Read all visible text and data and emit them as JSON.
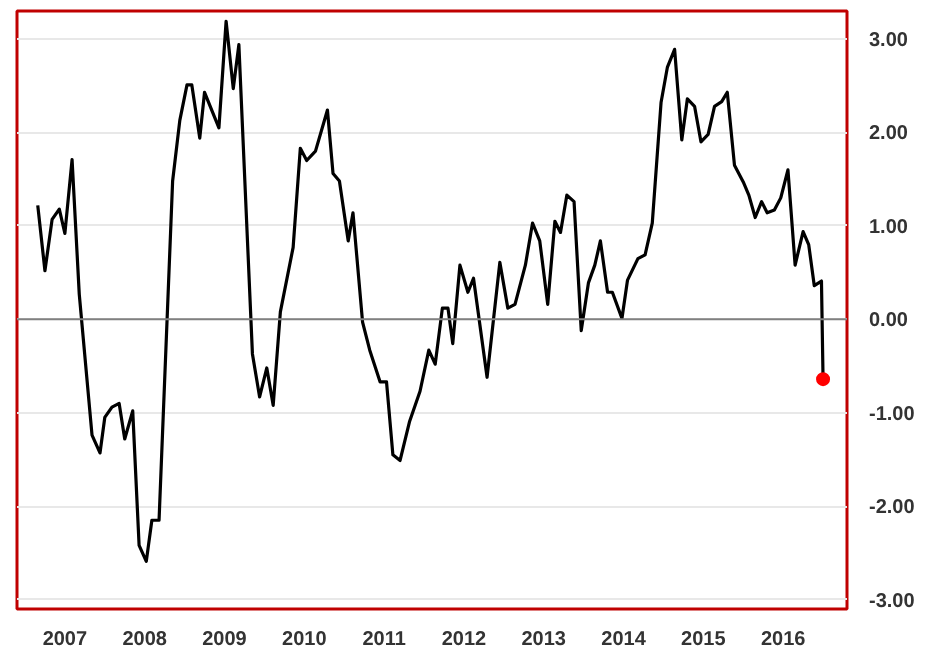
{
  "chart_data": {
    "type": "line",
    "xlim": [
      2006.9,
      2017.3
    ],
    "ylim": [
      -3.1,
      3.3
    ],
    "xticks": [
      {
        "value": 2007.5,
        "label": "2007"
      },
      {
        "value": 2008.5,
        "label": "2008"
      },
      {
        "value": 2009.5,
        "label": "2009"
      },
      {
        "value": 2010.5,
        "label": "2010"
      },
      {
        "value": 2011.5,
        "label": "2011"
      },
      {
        "value": 2012.5,
        "label": "2012"
      },
      {
        "value": 2013.5,
        "label": "2013"
      },
      {
        "value": 2014.5,
        "label": "2014"
      },
      {
        "value": 2015.5,
        "label": "2015"
      },
      {
        "value": 2016.5,
        "label": "2016"
      }
    ],
    "yticks": [
      {
        "value": 3,
        "label": "3.00"
      },
      {
        "value": 2,
        "label": "2.00"
      },
      {
        "value": 1,
        "label": "1.00"
      },
      {
        "value": 0,
        "label": "0.00"
      },
      {
        "value": -1,
        "label": "-1.00"
      },
      {
        "value": -2,
        "label": "-2.00"
      },
      {
        "value": -3,
        "label": "-3.00"
      }
    ],
    "grid": "y",
    "marker": "none",
    "line_style": "solid",
    "ref_lines": [
      {
        "axis": "y",
        "value": 0,
        "color": "#808080"
      }
    ],
    "series": [
      {
        "color": "#000000",
        "x": [
          2007.16,
          2007.25,
          2007.34,
          2007.43,
          2007.5,
          2007.59,
          2007.68,
          2007.84,
          2007.94,
          2008.0,
          2008.09,
          2008.18,
          2008.25,
          2008.35,
          2008.43,
          2008.52,
          2008.59,
          2008.68,
          2008.85,
          2008.94,
          2009.03,
          2009.09,
          2009.19,
          2009.25,
          2009.43,
          2009.52,
          2009.61,
          2009.68,
          2009.85,
          2009.94,
          2010.03,
          2010.11,
          2010.2,
          2010.36,
          2010.45,
          2010.53,
          2010.64,
          2010.79,
          2010.86,
          2010.94,
          2011.05,
          2011.11,
          2011.23,
          2011.32,
          2011.45,
          2011.53,
          2011.61,
          2011.7,
          2011.82,
          2011.95,
          2012.06,
          2012.14,
          2012.23,
          2012.3,
          2012.36,
          2012.45,
          2012.55,
          2012.62,
          2012.79,
          2012.95,
          2013.05,
          2013.14,
          2013.27,
          2013.36,
          2013.45,
          2013.55,
          2013.64,
          2013.71,
          2013.79,
          2013.88,
          2013.97,
          2014.06,
          2014.14,
          2014.21,
          2014.3,
          2014.36,
          2014.48,
          2014.55,
          2014.68,
          2014.77,
          2014.86,
          2014.97,
          2015.05,
          2015.14,
          2015.23,
          2015.3,
          2015.39,
          2015.47,
          2015.56,
          2015.64,
          2015.73,
          2015.8,
          2015.89,
          2016.0,
          2016.07,
          2016.15,
          2016.23,
          2016.3,
          2016.39,
          2016.47,
          2016.56,
          2016.65,
          2016.75,
          2016.82,
          2016.89,
          2016.98,
          2017.0
        ],
        "values": [
          1.22,
          0.52,
          1.07,
          1.18,
          0.92,
          1.71,
          0.27,
          -1.24,
          -1.43,
          -1.05,
          -0.94,
          -0.9,
          -1.28,
          -0.98,
          -2.42,
          -2.59,
          -2.15,
          -2.15,
          1.48,
          2.13,
          2.51,
          2.51,
          1.94,
          2.43,
          2.05,
          3.19,
          2.47,
          2.94,
          -0.37,
          -0.83,
          -0.52,
          -0.92,
          0.08,
          0.77,
          1.83,
          1.7,
          1.8,
          2.24,
          1.56,
          1.48,
          0.84,
          1.14,
          -0.03,
          -0.33,
          -0.67,
          -0.67,
          -1.45,
          -1.51,
          -1.09,
          -0.77,
          -0.33,
          -0.48,
          0.12,
          0.12,
          -0.26,
          0.58,
          0.29,
          0.44,
          -0.62,
          0.61,
          0.12,
          0.16,
          0.58,
          1.03,
          0.84,
          0.16,
          1.05,
          0.93,
          1.33,
          1.26,
          -0.12,
          0.39,
          0.58,
          0.84,
          0.29,
          0.29,
          0.01,
          0.42,
          0.65,
          0.69,
          1.03,
          2.32,
          2.7,
          2.89,
          1.92,
          2.36,
          2.28,
          1.9,
          1.98,
          2.28,
          2.33,
          2.43,
          1.65,
          1.47,
          1.33,
          1.09,
          1.26,
          1.14,
          1.17,
          1.3,
          1.6,
          0.58,
          0.94,
          0.8,
          0.36,
          0.41,
          -0.64
        ]
      },
      {
        "type": "scatter",
        "marker": "circle",
        "color": "#ff0000",
        "x": [
          2017.0
        ],
        "values": [
          -0.64
        ]
      }
    ]
  }
}
